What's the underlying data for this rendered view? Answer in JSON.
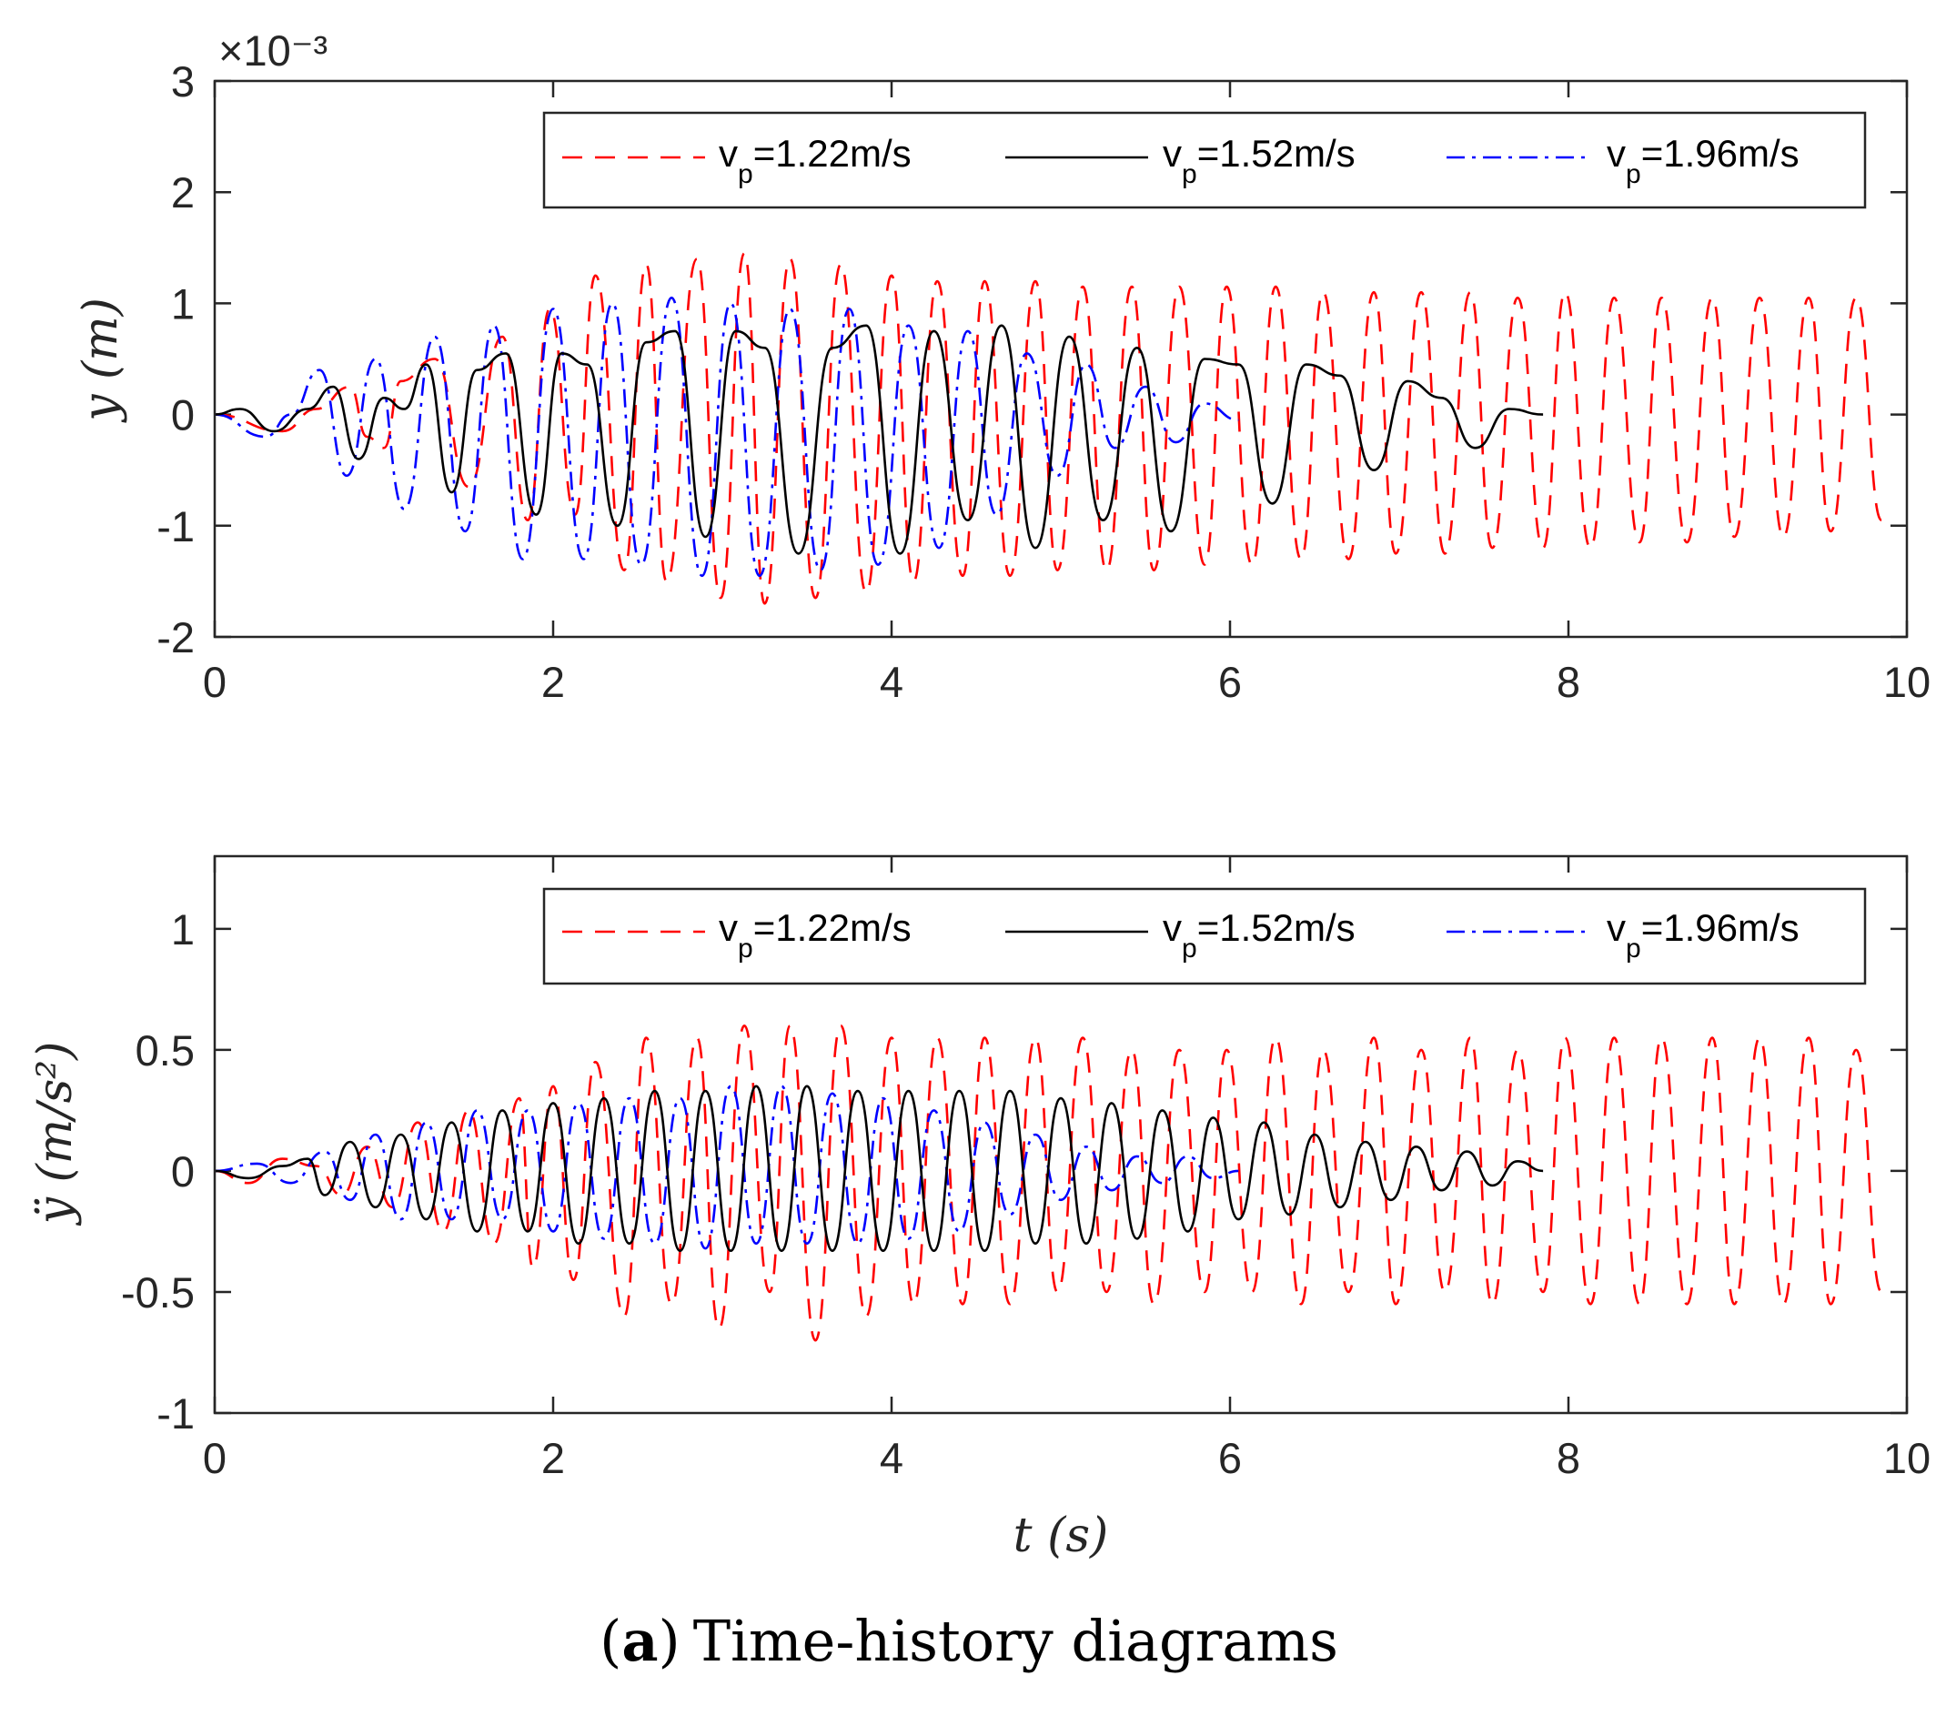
{
  "caption": {
    "open_paren": "(",
    "letter": "a",
    "close_paren": ")",
    "text": "Time-history diagrams"
  },
  "colors": {
    "v122": "#ff0000",
    "v152": "#000000",
    "v196": "#0000ff",
    "axis": "#262626"
  },
  "chart_data": [
    {
      "type": "line",
      "title": "",
      "xlabel": "",
      "ylabel": "y (m)",
      "exponent_label": "×10⁻³",
      "xlim": [
        0,
        10
      ],
      "ylim": [
        -2,
        3
      ],
      "y_unit_scale": 0.001,
      "xticks": [
        0,
        2,
        4,
        6,
        8,
        10
      ],
      "xtick_labels": [
        "0",
        "2",
        "4",
        "6",
        "8",
        "10"
      ],
      "yticks": [
        -2,
        -1,
        0,
        1,
        2,
        3
      ],
      "ytick_labels": [
        "-2",
        "-1",
        "0",
        "1",
        "2",
        "3"
      ],
      "legend": {
        "placement": "top-right, horizontal",
        "entries": [
          {
            "prefix": "v",
            "sub": "p",
            "suffix": "=1.22m/s"
          },
          {
            "prefix": "v",
            "sub": "p",
            "suffix": "=1.52m/s"
          },
          {
            "prefix": "v",
            "sub": "p",
            "suffix": "=1.96m/s"
          }
        ]
      },
      "series": [
        {
          "name": "vp=1.22m/s",
          "style": "dashed",
          "color": "#ff0000",
          "x": [
            0,
            0.4,
            0.6,
            0.8,
            0.9,
            1.0,
            1.1,
            1.3,
            1.5,
            1.7,
            1.85,
            1.98,
            2.13,
            2.25,
            2.42,
            2.55,
            2.67,
            2.85,
            2.99,
            3.13,
            3.25,
            3.4,
            3.55,
            3.7,
            3.85,
            4.0,
            4.13,
            4.27,
            4.42,
            4.55,
            4.7,
            4.85,
            4.98,
            5.13,
            5.27,
            5.42,
            5.55,
            5.7,
            5.85,
            5.98,
            6.13,
            6.27,
            6.42,
            6.55,
            6.7,
            6.85,
            6.98,
            7.13,
            7.27,
            7.42,
            7.55,
            7.7,
            7.85,
            7.98,
            8.13,
            8.27,
            8.42,
            8.55,
            8.7,
            8.85,
            8.98,
            9.13,
            9.27,
            9.42,
            9.55,
            9.7,
            9.85
          ],
          "y": [
            0,
            -0.15,
            0.05,
            0.25,
            -0.2,
            -0.3,
            0.3,
            0.5,
            -0.65,
            0.7,
            -0.95,
            0.95,
            -0.9,
            1.25,
            -1.4,
            1.35,
            -1.5,
            1.4,
            -1.65,
            1.45,
            -1.7,
            1.4,
            -1.65,
            1.35,
            -1.6,
            1.25,
            -1.5,
            1.2,
            -1.45,
            1.2,
            -1.45,
            1.2,
            -1.4,
            1.15,
            -1.4,
            1.15,
            -1.4,
            1.15,
            -1.35,
            1.15,
            -1.35,
            1.15,
            -1.3,
            1.1,
            -1.3,
            1.1,
            -1.25,
            1.1,
            -1.25,
            1.1,
            -1.2,
            1.05,
            -1.2,
            1.1,
            -1.2,
            1.05,
            -1.15,
            1.05,
            -1.15,
            1.05,
            -1.1,
            1.05,
            -1.1,
            1.05,
            -1.05,
            1.05,
            -0.95
          ]
        },
        {
          "name": "vp=1.52m/s",
          "style": "solid",
          "color": "#000000",
          "x": [
            0,
            0.15,
            0.35,
            0.55,
            0.7,
            0.85,
            1.0,
            1.12,
            1.25,
            1.4,
            1.55,
            1.72,
            1.9,
            2.05,
            2.2,
            2.38,
            2.55,
            2.72,
            2.9,
            3.08,
            3.25,
            3.45,
            3.65,
            3.85,
            4.05,
            4.25,
            4.45,
            4.65,
            4.85,
            5.05,
            5.25,
            5.45,
            5.65,
            5.85,
            6.05,
            6.25,
            6.45,
            6.65,
            6.85,
            7.05,
            7.25,
            7.45,
            7.65,
            7.85
          ],
          "y": [
            0,
            0.05,
            -0.15,
            0.05,
            0.25,
            -0.4,
            0.15,
            0.05,
            0.45,
            -0.7,
            0.4,
            0.55,
            -0.9,
            0.55,
            0.45,
            -1.0,
            0.65,
            0.75,
            -1.1,
            0.75,
            0.6,
            -1.25,
            0.6,
            0.8,
            -1.25,
            0.75,
            -0.95,
            0.8,
            -1.2,
            0.7,
            -0.95,
            0.6,
            -1.05,
            0.5,
            0.45,
            -0.8,
            0.45,
            0.35,
            -0.5,
            0.3,
            0.15,
            -0.3,
            0.05,
            0.0
          ]
        },
        {
          "name": "vp=1.96m/s",
          "style": "dashdot",
          "color": "#0000ff",
          "x": [
            0,
            0.3,
            0.45,
            0.62,
            0.78,
            0.95,
            1.12,
            1.3,
            1.48,
            1.65,
            1.82,
            2.0,
            2.18,
            2.35,
            2.52,
            2.7,
            2.88,
            3.05,
            3.22,
            3.4,
            3.58,
            3.75,
            3.92,
            4.1,
            4.28,
            4.45,
            4.62,
            4.8,
            4.98,
            5.15,
            5.32,
            5.5,
            5.68,
            5.85,
            6.05
          ],
          "y": [
            0,
            -0.2,
            0.0,
            0.4,
            -0.55,
            0.5,
            -0.85,
            0.7,
            -1.05,
            0.8,
            -1.3,
            0.95,
            -1.3,
            1.0,
            -1.35,
            1.05,
            -1.45,
            1.0,
            -1.45,
            0.95,
            -1.4,
            0.95,
            -1.35,
            0.8,
            -1.2,
            0.75,
            -0.9,
            0.55,
            -0.55,
            0.45,
            -0.3,
            0.25,
            -0.25,
            0.1,
            -0.05
          ]
        }
      ]
    },
    {
      "type": "line",
      "title": "",
      "xlabel": "t (s)",
      "ylabel": "ÿ (m/s²)",
      "xlim": [
        0,
        10
      ],
      "ylim": [
        -1,
        1.3
      ],
      "xticks": [
        0,
        2,
        4,
        6,
        8,
        10
      ],
      "xtick_labels": [
        "0",
        "2",
        "4",
        "6",
        "8",
        "10"
      ],
      "yticks": [
        -1,
        -0.5,
        0,
        0.5,
        1
      ],
      "ytick_labels": [
        "-1",
        "-0.5",
        "0",
        "0.5",
        "1"
      ],
      "legend": {
        "placement": "top-right, horizontal",
        "entries": [
          {
            "prefix": "v",
            "sub": "p",
            "suffix": "=1.22m/s"
          },
          {
            "prefix": "v",
            "sub": "p",
            "suffix": "=1.52m/s"
          },
          {
            "prefix": "v",
            "sub": "p",
            "suffix": "=1.96m/s"
          }
        ]
      },
      "series": [
        {
          "name": "vp=1.22m/s",
          "style": "dashed",
          "color": "#ff0000",
          "x": [
            0,
            0.2,
            0.4,
            0.6,
            0.75,
            0.9,
            1.05,
            1.2,
            1.35,
            1.5,
            1.65,
            1.8,
            1.88,
            2.0,
            2.12,
            2.25,
            2.42,
            2.55,
            2.7,
            2.85,
            2.98,
            3.13,
            3.28,
            3.4,
            3.55,
            3.7,
            3.85,
            4.0,
            4.13,
            4.27,
            4.42,
            4.55,
            4.7,
            4.85,
            4.98,
            5.13,
            5.27,
            5.42,
            5.55,
            5.7,
            5.85,
            5.98,
            6.13,
            6.27,
            6.42,
            6.55,
            6.7,
            6.85,
            6.98,
            7.13,
            7.27,
            7.42,
            7.55,
            7.7,
            7.85,
            7.98,
            8.13,
            8.27,
            8.42,
            8.55,
            8.7,
            8.85,
            8.98,
            9.13,
            9.27,
            9.42,
            9.55,
            9.7,
            9.85
          ],
          "y": [
            0,
            -0.05,
            0.05,
            0.02,
            -0.1,
            0.1,
            -0.15,
            0.2,
            -0.25,
            0.25,
            -0.3,
            0.3,
            -0.4,
            0.35,
            -0.45,
            0.45,
            -0.6,
            0.55,
            -0.55,
            0.55,
            -0.65,
            0.6,
            -0.5,
            0.6,
            -0.7,
            0.6,
            -0.6,
            0.55,
            -0.55,
            0.55,
            -0.55,
            0.55,
            -0.55,
            0.55,
            -0.5,
            0.55,
            -0.5,
            0.5,
            -0.55,
            0.5,
            -0.5,
            0.5,
            -0.5,
            0.55,
            -0.55,
            0.5,
            -0.5,
            0.55,
            -0.55,
            0.5,
            -0.5,
            0.55,
            -0.55,
            0.5,
            -0.5,
            0.55,
            -0.55,
            0.55,
            -0.55,
            0.55,
            -0.55,
            0.55,
            -0.55,
            0.55,
            -0.55,
            0.55,
            -0.55,
            0.5,
            -0.5
          ]
        },
        {
          "name": "vp=1.52m/s",
          "style": "solid",
          "color": "#000000",
          "x": [
            0,
            0.2,
            0.4,
            0.55,
            0.65,
            0.8,
            0.95,
            1.1,
            1.25,
            1.4,
            1.55,
            1.7,
            1.85,
            2.0,
            2.15,
            2.3,
            2.45,
            2.6,
            2.75,
            2.9,
            3.05,
            3.2,
            3.35,
            3.5,
            3.65,
            3.8,
            3.95,
            4.1,
            4.25,
            4.4,
            4.55,
            4.7,
            4.85,
            5.0,
            5.15,
            5.3,
            5.45,
            5.6,
            5.75,
            5.9,
            6.05,
            6.2,
            6.35,
            6.5,
            6.65,
            6.8,
            6.95,
            7.1,
            7.25,
            7.4,
            7.55,
            7.7,
            7.85
          ],
          "y": [
            0,
            -0.03,
            0.02,
            0.05,
            -0.1,
            0.12,
            -0.15,
            0.15,
            -0.2,
            0.2,
            -0.25,
            0.25,
            -0.25,
            0.28,
            -0.3,
            0.3,
            -0.3,
            0.33,
            -0.33,
            0.33,
            -0.33,
            0.35,
            -0.33,
            0.35,
            -0.33,
            0.33,
            -0.33,
            0.33,
            -0.33,
            0.33,
            -0.33,
            0.33,
            -0.3,
            0.3,
            -0.3,
            0.28,
            -0.28,
            0.25,
            -0.25,
            0.22,
            -0.2,
            0.2,
            -0.18,
            0.15,
            -0.15,
            0.12,
            -0.12,
            0.1,
            -0.08,
            0.08,
            -0.06,
            0.04,
            0.0
          ]
        },
        {
          "name": "vp=1.96m/s",
          "style": "dashdot",
          "color": "#0000ff",
          "x": [
            0,
            0.25,
            0.45,
            0.65,
            0.8,
            0.95,
            1.1,
            1.25,
            1.4,
            1.55,
            1.7,
            1.85,
            2.0,
            2.15,
            2.3,
            2.45,
            2.6,
            2.75,
            2.9,
            3.05,
            3.2,
            3.35,
            3.5,
            3.65,
            3.8,
            3.95,
            4.1,
            4.25,
            4.4,
            4.55,
            4.7,
            4.85,
            5.0,
            5.15,
            5.3,
            5.45,
            5.6,
            5.75,
            5.9,
            6.05
          ],
          "y": [
            0,
            0.03,
            -0.05,
            0.08,
            -0.12,
            0.15,
            -0.2,
            0.2,
            -0.2,
            0.25,
            -0.2,
            0.25,
            -0.25,
            0.28,
            -0.28,
            0.3,
            -0.3,
            0.3,
            -0.32,
            0.35,
            -0.3,
            0.35,
            -0.3,
            0.32,
            -0.3,
            0.3,
            -0.28,
            0.25,
            -0.25,
            0.2,
            -0.18,
            0.15,
            -0.12,
            0.1,
            -0.08,
            0.06,
            -0.05,
            0.06,
            -0.03,
            0.0
          ]
        }
      ]
    }
  ]
}
